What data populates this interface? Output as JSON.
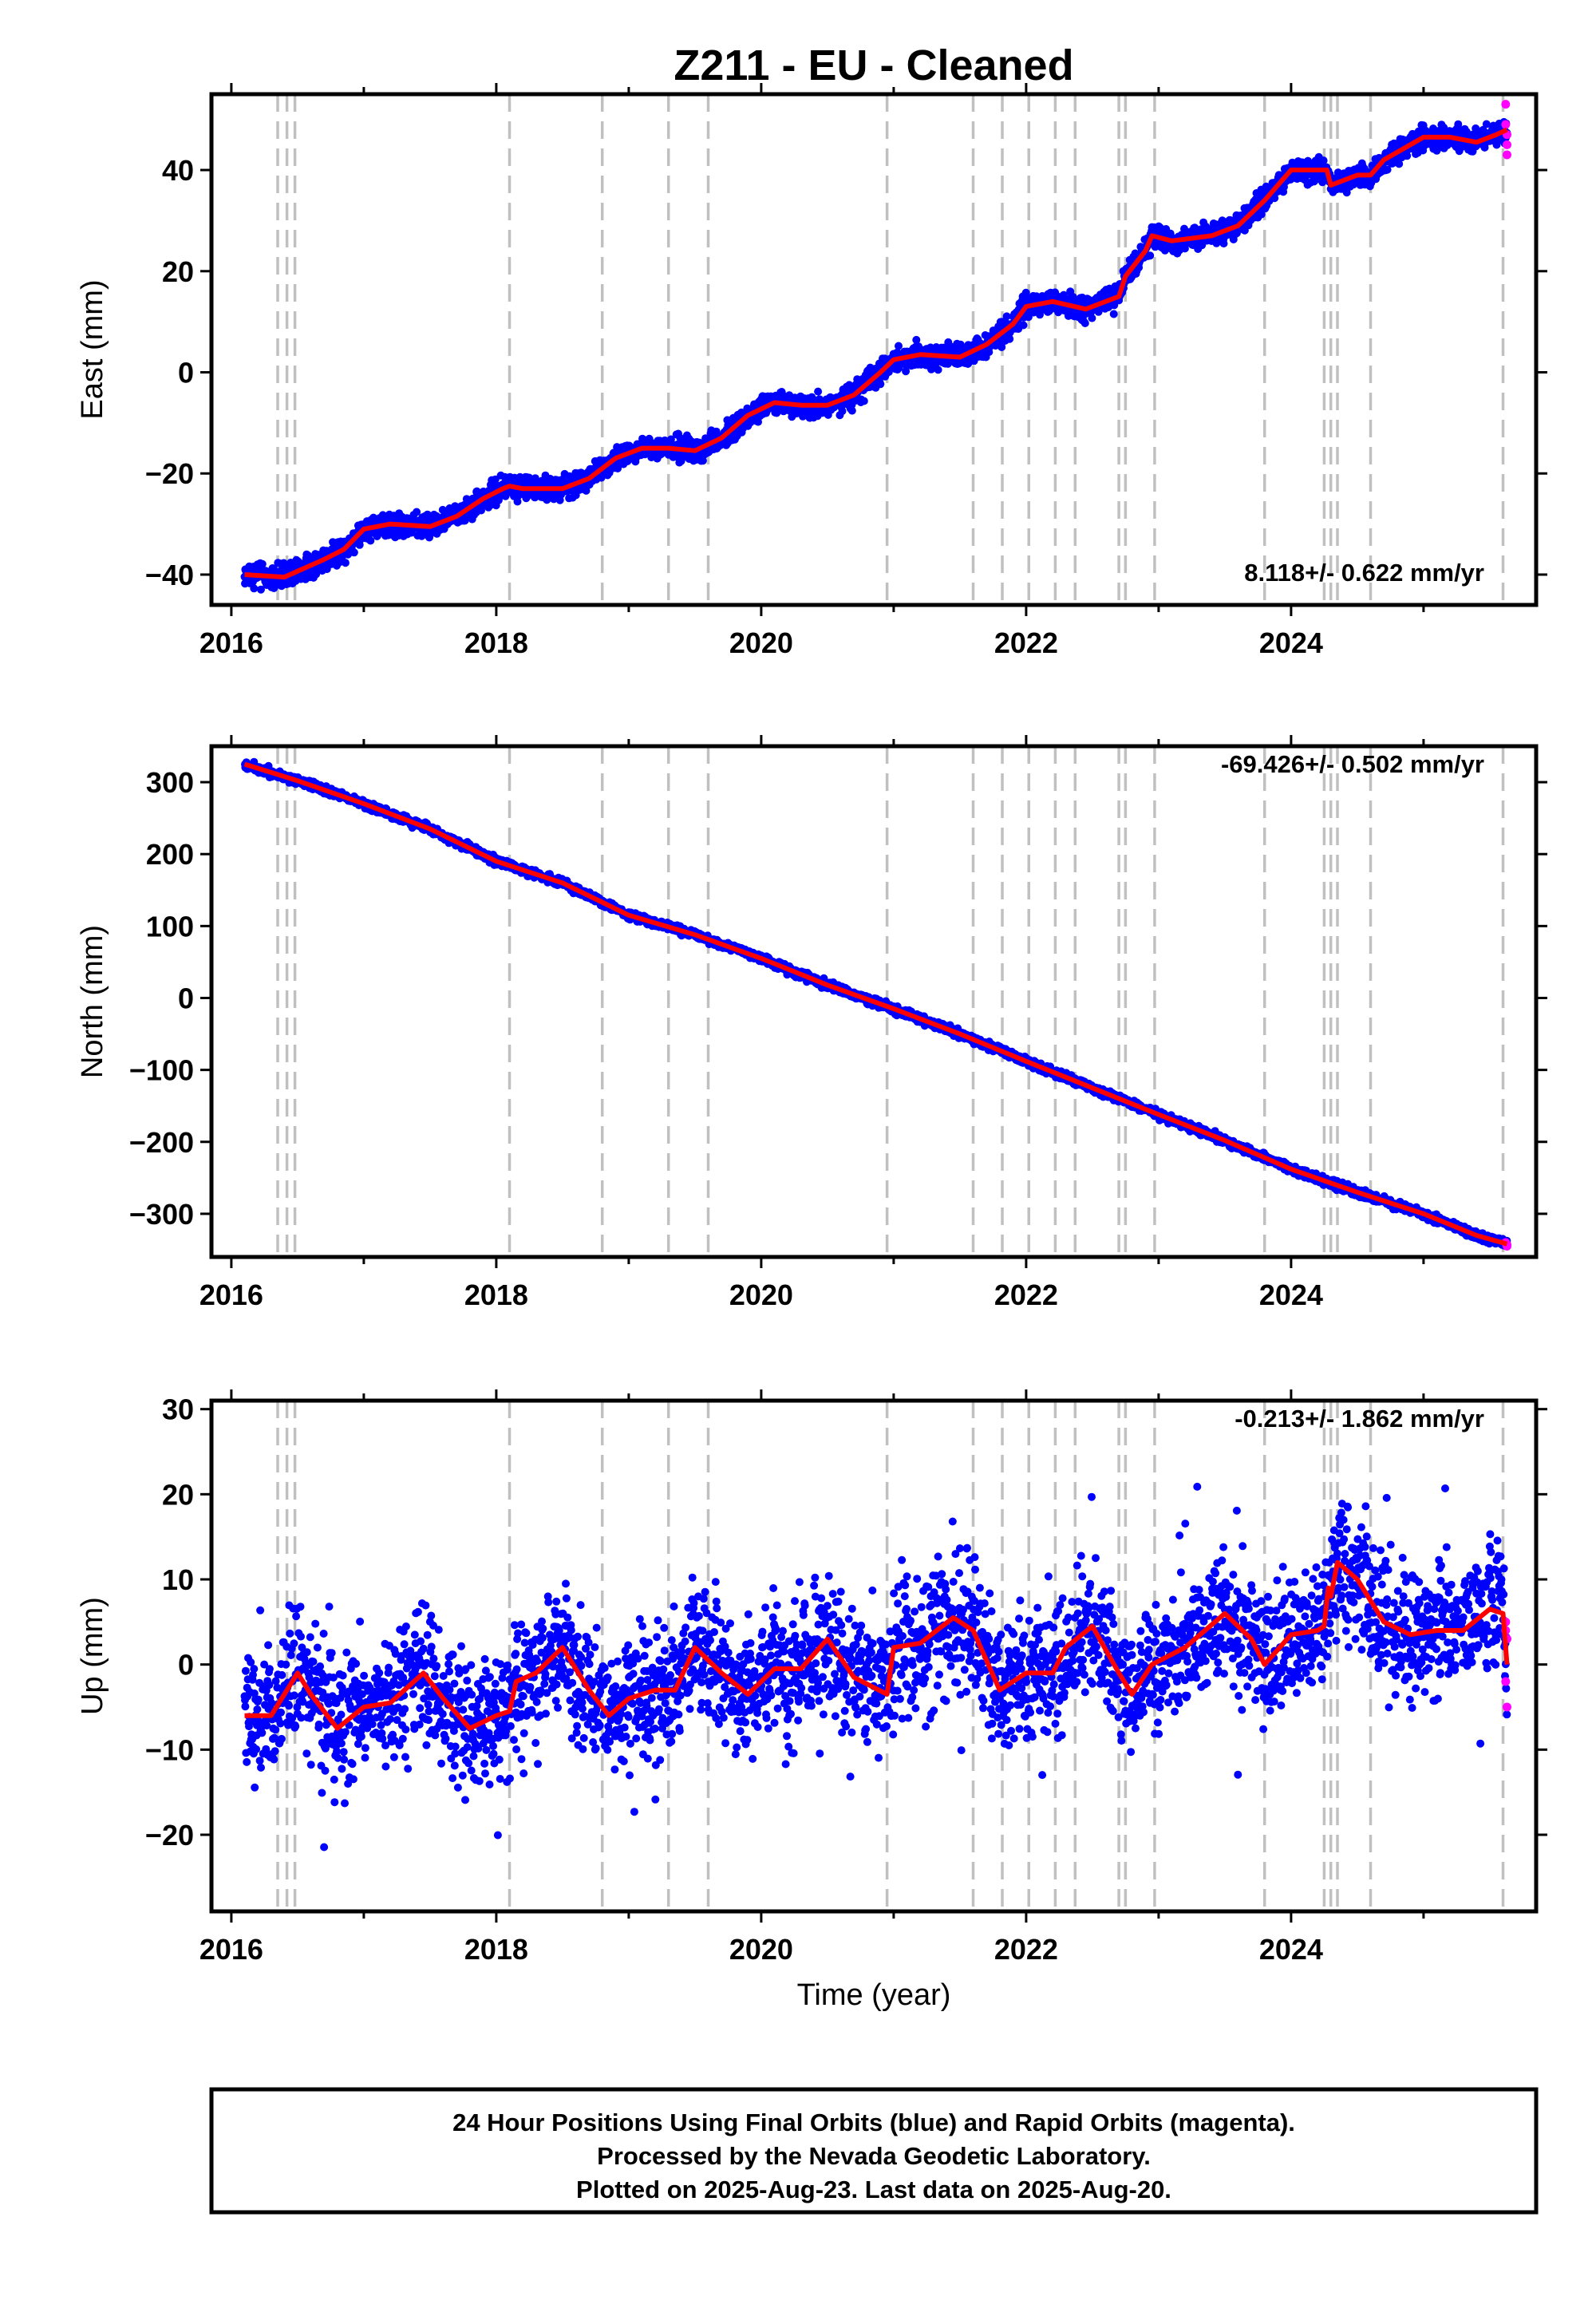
{
  "title": "Z211  - EU - Cleaned",
  "xlabel": "Time (year)",
  "footer": [
    "24 Hour Positions Using Final Orbits (blue) and Rapid Orbits (magenta).",
    "Processed by the Nevada Geodetic Laboratory.",
    "Plotted on 2025-Aug-23. Last data on 2025-Aug-20."
  ],
  "colors": {
    "final": "#0000ff",
    "rapid": "#ff00ff",
    "model": "#ff0000",
    "steps": "#c0c0c0"
  },
  "chart_data": [
    {
      "type": "scatter",
      "ylabel": "East (mm)",
      "rate_label": "8.118+/- 0.622 mm/yr",
      "xlim": [
        2015.85,
        2025.85
      ],
      "ylim": [
        -46,
        55
      ],
      "yticks": [
        -40,
        -20,
        0,
        20,
        40
      ],
      "xticks": [
        2016,
        2018,
        2020,
        2022,
        2024
      ],
      "model": [
        [
          2016.1,
          -40
        ],
        [
          2016.4,
          -40.5
        ],
        [
          2016.7,
          -37
        ],
        [
          2016.85,
          -35
        ],
        [
          2017.0,
          -31
        ],
        [
          2017.2,
          -30
        ],
        [
          2017.5,
          -30.5
        ],
        [
          2017.7,
          -28.5
        ],
        [
          2017.9,
          -25
        ],
        [
          2018.05,
          -23
        ],
        [
          2018.1,
          -22.5
        ],
        [
          2018.2,
          -23
        ],
        [
          2018.5,
          -23
        ],
        [
          2018.7,
          -21
        ],
        [
          2018.9,
          -17
        ],
        [
          2019.1,
          -15
        ],
        [
          2019.3,
          -15
        ],
        [
          2019.5,
          -15.5
        ],
        [
          2019.7,
          -13
        ],
        [
          2019.9,
          -8.5
        ],
        [
          2020.1,
          -6
        ],
        [
          2020.3,
          -6.5
        ],
        [
          2020.5,
          -6.5
        ],
        [
          2020.7,
          -4.5
        ],
        [
          2020.9,
          0
        ],
        [
          2021.0,
          2.5
        ],
        [
          2021.2,
          3.5
        ],
        [
          2021.5,
          3
        ],
        [
          2021.7,
          5.5
        ],
        [
          2021.9,
          9.5
        ],
        [
          2022.0,
          13
        ],
        [
          2022.2,
          14
        ],
        [
          2022.45,
          12.5
        ],
        [
          2022.7,
          15
        ],
        [
          2022.75,
          19
        ],
        [
          2022.9,
          24
        ],
        [
          2022.95,
          27
        ],
        [
          2023.1,
          26
        ],
        [
          2023.4,
          27
        ],
        [
          2023.6,
          29
        ],
        [
          2023.8,
          34
        ],
        [
          2024.0,
          40
        ],
        [
          2024.2,
          40
        ],
        [
          2024.27,
          40
        ],
        [
          2024.3,
          37
        ],
        [
          2024.5,
          39
        ],
        [
          2024.6,
          39
        ],
        [
          2024.7,
          42
        ],
        [
          2024.9,
          45
        ],
        [
          2025.0,
          46.5
        ],
        [
          2025.2,
          46.5
        ],
        [
          2025.4,
          45.5
        ],
        [
          2025.55,
          47
        ],
        [
          2025.63,
          48
        ]
      ],
      "scatter_amplitude": 1.4,
      "rapid": [
        [
          2025.62,
          53
        ],
        [
          2025.62,
          49
        ],
        [
          2025.63,
          47
        ],
        [
          2025.63,
          45
        ],
        [
          2025.63,
          43
        ]
      ],
      "steps": [
        2016.35,
        2016.42,
        2016.48,
        2018.1,
        2018.8,
        2019.3,
        2019.6,
        2020.95,
        2021.6,
        2021.82,
        2022.02,
        2022.22,
        2022.37,
        2022.7,
        2022.75,
        2022.97,
        2023.8,
        2024.25,
        2024.3,
        2024.35,
        2024.6,
        2025.6
      ]
    },
    {
      "type": "scatter",
      "ylabel": "North (mm)",
      "rate_label": "-69.426+/- 0.502 mm/yr",
      "xlim": [
        2015.85,
        2025.85
      ],
      "ylim": [
        -360,
        350
      ],
      "yticks": [
        -300,
        -200,
        -100,
        0,
        100,
        200,
        300
      ],
      "xticks": [
        2016,
        2018,
        2020,
        2022,
        2024
      ],
      "model": [
        [
          2016.1,
          325
        ],
        [
          2016.5,
          302
        ],
        [
          2017.0,
          270
        ],
        [
          2017.5,
          235
        ],
        [
          2018.0,
          190
        ],
        [
          2018.5,
          160
        ],
        [
          2019.0,
          115
        ],
        [
          2019.5,
          88
        ],
        [
          2020.0,
          55
        ],
        [
          2020.5,
          18
        ],
        [
          2021.0,
          -15
        ],
        [
          2021.5,
          -50
        ],
        [
          2022.0,
          -88
        ],
        [
          2022.5,
          -125
        ],
        [
          2023.0,
          -162
        ],
        [
          2023.5,
          -198
        ],
        [
          2024.0,
          -238
        ],
        [
          2024.5,
          -270
        ],
        [
          2025.0,
          -300
        ],
        [
          2025.4,
          -330
        ],
        [
          2025.63,
          -342
        ]
      ],
      "scatter_amplitude": 3.5,
      "rapid": [
        [
          2025.62,
          -340
        ],
        [
          2025.63,
          -343
        ],
        [
          2025.63,
          -345
        ]
      ],
      "steps": [
        2016.35,
        2016.42,
        2016.48,
        2018.1,
        2018.8,
        2019.3,
        2019.6,
        2020.95,
        2021.6,
        2021.82,
        2022.02,
        2022.22,
        2022.37,
        2022.7,
        2022.75,
        2022.97,
        2023.8,
        2024.25,
        2024.3,
        2024.35,
        2024.6,
        2025.6
      ]
    },
    {
      "type": "scatter",
      "ylabel": "Up (mm)",
      "rate_label": "-0.213+/- 1.862 mm/yr",
      "xlim": [
        2015.85,
        2025.85
      ],
      "ylim": [
        -29,
        31
      ],
      "yticks": [
        -20,
        -10,
        0,
        10,
        20,
        30
      ],
      "xticks": [
        2016,
        2018,
        2020,
        2022,
        2024
      ],
      "model": [
        [
          2016.1,
          -6
        ],
        [
          2016.3,
          -6
        ],
        [
          2016.5,
          -1
        ],
        [
          2016.6,
          -3.5
        ],
        [
          2016.8,
          -7.5
        ],
        [
          2017.0,
          -5
        ],
        [
          2017.2,
          -4.5
        ],
        [
          2017.45,
          -1
        ],
        [
          2017.6,
          -4
        ],
        [
          2017.8,
          -7.5
        ],
        [
          2018.0,
          -6
        ],
        [
          2018.1,
          -5.5
        ],
        [
          2018.15,
          -2
        ],
        [
          2018.3,
          -1
        ],
        [
          2018.5,
          2
        ],
        [
          2018.7,
          -3
        ],
        [
          2018.85,
          -6
        ],
        [
          2019.0,
          -4
        ],
        [
          2019.2,
          -3
        ],
        [
          2019.35,
          -3
        ],
        [
          2019.5,
          2
        ],
        [
          2019.7,
          -1
        ],
        [
          2019.9,
          -3.5
        ],
        [
          2020.1,
          -0.5
        ],
        [
          2020.3,
          -0.5
        ],
        [
          2020.5,
          3
        ],
        [
          2020.7,
          -1.5
        ],
        [
          2020.95,
          -3.5
        ],
        [
          2021.0,
          2
        ],
        [
          2021.2,
          2.5
        ],
        [
          2021.45,
          5.5
        ],
        [
          2021.6,
          4
        ],
        [
          2021.8,
          -3
        ],
        [
          2022.0,
          -1
        ],
        [
          2022.2,
          -1
        ],
        [
          2022.3,
          2
        ],
        [
          2022.5,
          4.5
        ],
        [
          2022.7,
          -1
        ],
        [
          2022.8,
          -3.5
        ],
        [
          2022.95,
          0
        ],
        [
          2023.2,
          2
        ],
        [
          2023.5,
          6
        ],
        [
          2023.7,
          3
        ],
        [
          2023.8,
          0
        ],
        [
          2024.0,
          3.5
        ],
        [
          2024.2,
          4
        ],
        [
          2024.25,
          4.5
        ],
        [
          2024.28,
          9
        ],
        [
          2024.3,
          8
        ],
        [
          2024.35,
          12
        ],
        [
          2024.5,
          10
        ],
        [
          2024.7,
          5
        ],
        [
          2024.9,
          3.5
        ],
        [
          2025.1,
          4
        ],
        [
          2025.3,
          4
        ],
        [
          2025.5,
          6.5
        ],
        [
          2025.6,
          6
        ],
        [
          2025.63,
          0
        ]
      ],
      "scatter_amplitude": 4.5,
      "rapid": [
        [
          2025.62,
          5
        ],
        [
          2025.62,
          4
        ],
        [
          2025.63,
          3
        ],
        [
          2025.62,
          -2
        ],
        [
          2025.63,
          -5
        ]
      ],
      "steps": [
        2016.35,
        2016.42,
        2016.48,
        2018.1,
        2018.8,
        2019.3,
        2019.6,
        2020.95,
        2021.6,
        2021.82,
        2022.02,
        2022.22,
        2022.37,
        2022.7,
        2022.75,
        2022.97,
        2023.8,
        2024.25,
        2024.3,
        2024.35,
        2024.6,
        2025.6
      ]
    }
  ]
}
